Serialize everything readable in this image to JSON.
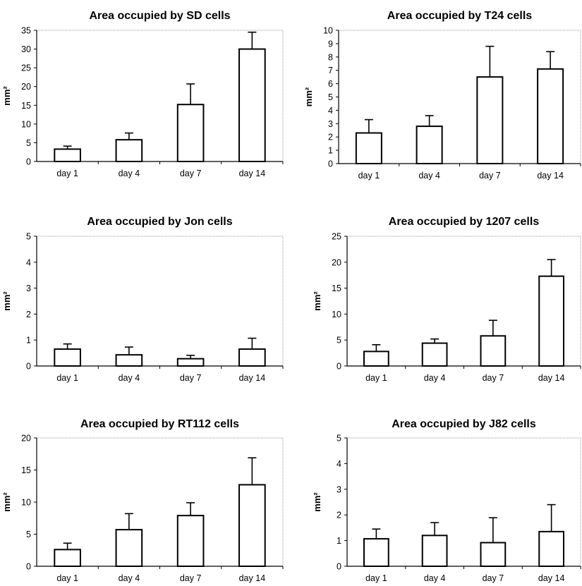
{
  "chart_data": [
    {
      "type": "bar",
      "title": "Area occupied by SD cells",
      "ylabel": "mm²",
      "categories": [
        "day 1",
        "day 4",
        "day 7",
        "day 14"
      ],
      "values": [
        3.3,
        5.8,
        15.2,
        30
      ],
      "errors": [
        0.8,
        1.8,
        5.5,
        4.5
      ],
      "ylim": [
        0,
        35
      ],
      "yticks": [
        0,
        5,
        10,
        15,
        20,
        25,
        30,
        35
      ]
    },
    {
      "type": "bar",
      "title": "Area occupied by T24 cells",
      "ylabel": "mm²",
      "categories": [
        "day 1",
        "day 4",
        "day 7",
        "day 14"
      ],
      "values": [
        2.3,
        2.8,
        6.5,
        7.1
      ],
      "errors": [
        1.0,
        0.8,
        2.3,
        1.3
      ],
      "ylim": [
        0,
        10
      ],
      "yticks": [
        0,
        1,
        2,
        3,
        4,
        5,
        6,
        7,
        8,
        9,
        10
      ]
    },
    {
      "type": "bar",
      "title": "Area occupied by Jon cells",
      "ylabel": "mm²",
      "categories": [
        "day 1",
        "day 4",
        "day 7",
        "day 14"
      ],
      "values": [
        0.65,
        0.43,
        0.28,
        0.65
      ],
      "errors": [
        0.2,
        0.3,
        0.13,
        0.42
      ],
      "ylim": [
        0,
        5
      ],
      "yticks": [
        0,
        1,
        2,
        3,
        4,
        5
      ]
    },
    {
      "type": "bar",
      "title": "Area occupied by 1207 cells",
      "ylabel": "mm²",
      "categories": [
        "day 1",
        "day 4",
        "day 7",
        "day 14"
      ],
      "values": [
        2.8,
        4.4,
        5.8,
        17.3
      ],
      "errors": [
        1.3,
        0.8,
        3.0,
        3.2
      ],
      "ylim": [
        0,
        25
      ],
      "yticks": [
        0,
        5,
        10,
        15,
        20,
        25
      ]
    },
    {
      "type": "bar",
      "title": "Area occupied by RT112 cells",
      "ylabel": "mm²",
      "categories": [
        "day 1",
        "day 4",
        "day 7",
        "day 14"
      ],
      "values": [
        2.6,
        5.7,
        7.9,
        12.7
      ],
      "errors": [
        1.0,
        2.5,
        2.0,
        4.2
      ],
      "ylim": [
        0,
        20
      ],
      "yticks": [
        0,
        5,
        10,
        15,
        20
      ]
    },
    {
      "type": "bar",
      "title": "Area occupied by J82 cells",
      "ylabel": "mm²",
      "categories": [
        "day 1",
        "day 4",
        "day 7",
        "day 14"
      ],
      "values": [
        1.07,
        1.2,
        0.92,
        1.35
      ],
      "errors": [
        0.38,
        0.5,
        0.97,
        1.05
      ],
      "ylim": [
        0,
        5
      ],
      "yticks": [
        0,
        1,
        2,
        3,
        4,
        5
      ]
    }
  ]
}
